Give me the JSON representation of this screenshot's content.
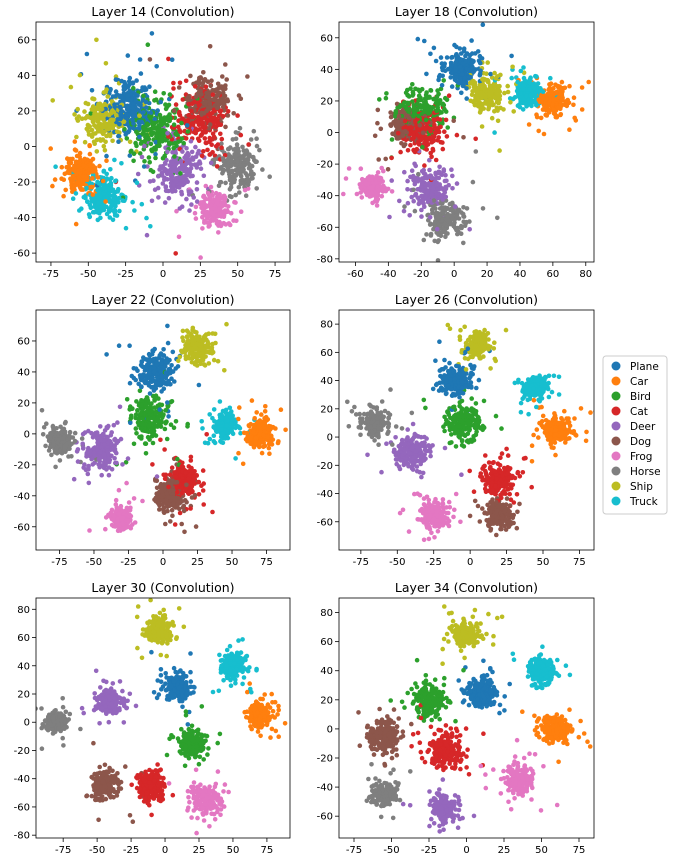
{
  "chart_data": [
    {
      "type": "scatter",
      "title": "Layer 14 (Convolution)",
      "xlim": [
        -85,
        85
      ],
      "ylim": [
        -65,
        70
      ],
      "xticks": [
        -75,
        -50,
        -25,
        0,
        25,
        50,
        75
      ],
      "yticks": [
        -60,
        -40,
        -20,
        0,
        20,
        40,
        60
      ],
      "clusters": [
        {
          "class": "Plane",
          "x": -22,
          "y": 22,
          "spread": 18,
          "n": 260
        },
        {
          "class": "Car",
          "x": -55,
          "y": -15,
          "spread": 12,
          "n": 200
        },
        {
          "class": "Bird",
          "x": -5,
          "y": 10,
          "spread": 20,
          "n": 220
        },
        {
          "class": "Cat",
          "x": 25,
          "y": 15,
          "spread": 20,
          "n": 220
        },
        {
          "class": "Deer",
          "x": 10,
          "y": -15,
          "spread": 18,
          "n": 200
        },
        {
          "class": "Dog",
          "x": 30,
          "y": 25,
          "spread": 15,
          "n": 200
        },
        {
          "class": "Frog",
          "x": 35,
          "y": -35,
          "spread": 12,
          "n": 160
        },
        {
          "class": "Horse",
          "x": 50,
          "y": -10,
          "spread": 16,
          "n": 200
        },
        {
          "class": "Ship",
          "x": -40,
          "y": 15,
          "spread": 16,
          "n": 200
        },
        {
          "class": "Truck",
          "x": -40,
          "y": -28,
          "spread": 14,
          "n": 220
        }
      ]
    },
    {
      "type": "scatter",
      "title": "Layer 18 (Convolution)",
      "xlim": [
        -70,
        85
      ],
      "ylim": [
        -82,
        70
      ],
      "xticks": [
        -60,
        -40,
        -20,
        0,
        20,
        40,
        60,
        80
      ],
      "yticks": [
        -80,
        -60,
        -40,
        -20,
        0,
        20,
        40,
        60
      ],
      "clusters": [
        {
          "class": "Plane",
          "x": 5,
          "y": 40,
          "spread": 12,
          "n": 220
        },
        {
          "class": "Car",
          "x": 60,
          "y": 20,
          "spread": 10,
          "n": 220
        },
        {
          "class": "Bird",
          "x": -20,
          "y": 15,
          "spread": 16,
          "n": 200
        },
        {
          "class": "Cat",
          "x": -20,
          "y": 0,
          "spread": 14,
          "n": 220
        },
        {
          "class": "Deer",
          "x": -15,
          "y": -35,
          "spread": 13,
          "n": 200
        },
        {
          "class": "Dog",
          "x": -30,
          "y": 5,
          "spread": 12,
          "n": 180
        },
        {
          "class": "Frog",
          "x": -50,
          "y": -35,
          "spread": 8,
          "n": 160
        },
        {
          "class": "Horse",
          "x": -5,
          "y": -55,
          "spread": 13,
          "n": 180
        },
        {
          "class": "Ship",
          "x": 20,
          "y": 25,
          "spread": 12,
          "n": 200
        },
        {
          "class": "Truck",
          "x": 45,
          "y": 25,
          "spread": 9,
          "n": 220
        }
      ]
    },
    {
      "type": "scatter",
      "title": "Layer 22 (Convolution)",
      "xlim": [
        -92,
        92
      ],
      "ylim": [
        -75,
        80
      ],
      "xticks": [
        -75,
        -50,
        -25,
        0,
        25,
        50,
        75
      ],
      "yticks": [
        -60,
        -40,
        -20,
        0,
        20,
        40,
        60
      ],
      "clusters": [
        {
          "class": "Plane",
          "x": -5,
          "y": 40,
          "spread": 14,
          "n": 220
        },
        {
          "class": "Car",
          "x": 70,
          "y": 0,
          "spread": 10,
          "n": 220
        },
        {
          "class": "Bird",
          "x": -10,
          "y": 10,
          "spread": 16,
          "n": 200
        },
        {
          "class": "Cat",
          "x": 15,
          "y": -30,
          "spread": 12,
          "n": 220
        },
        {
          "class": "Deer",
          "x": -45,
          "y": -10,
          "spread": 14,
          "n": 200
        },
        {
          "class": "Dog",
          "x": 5,
          "y": -40,
          "spread": 12,
          "n": 200
        },
        {
          "class": "Frog",
          "x": -30,
          "y": -55,
          "spread": 9,
          "n": 180
        },
        {
          "class": "Horse",
          "x": -75,
          "y": -5,
          "spread": 10,
          "n": 180
        },
        {
          "class": "Ship",
          "x": 25,
          "y": 55,
          "spread": 11,
          "n": 200
        },
        {
          "class": "Truck",
          "x": 45,
          "y": 5,
          "spread": 9,
          "n": 220
        }
      ]
    },
    {
      "type": "scatter",
      "title": "Layer 26 (Convolution)",
      "xlim": [
        -90,
        85
      ],
      "ylim": [
        -80,
        90
      ],
      "xticks": [
        -75,
        -50,
        -25,
        0,
        25,
        50,
        75
      ],
      "yticks": [
        -60,
        -40,
        -20,
        0,
        20,
        40,
        60,
        80
      ],
      "clusters": [
        {
          "class": "Plane",
          "x": -10,
          "y": 40,
          "spread": 12,
          "n": 220
        },
        {
          "class": "Car",
          "x": 60,
          "y": 5,
          "spread": 11,
          "n": 220
        },
        {
          "class": "Bird",
          "x": -5,
          "y": 10,
          "spread": 14,
          "n": 200
        },
        {
          "class": "Cat",
          "x": 20,
          "y": -30,
          "spread": 12,
          "n": 220
        },
        {
          "class": "Deer",
          "x": -40,
          "y": -10,
          "spread": 14,
          "n": 200
        },
        {
          "class": "Dog",
          "x": 20,
          "y": -55,
          "spread": 10,
          "n": 180
        },
        {
          "class": "Frog",
          "x": -25,
          "y": -55,
          "spread": 11,
          "n": 180
        },
        {
          "class": "Horse",
          "x": -65,
          "y": 10,
          "spread": 10,
          "n": 180
        },
        {
          "class": "Ship",
          "x": 5,
          "y": 65,
          "spread": 9,
          "n": 200
        },
        {
          "class": "Truck",
          "x": 45,
          "y": 35,
          "spread": 9,
          "n": 220
        }
      ]
    },
    {
      "type": "scatter",
      "title": "Layer 30 (Convolution)",
      "xlim": [
        -95,
        92
      ],
      "ylim": [
        -82,
        88
      ],
      "xticks": [
        -75,
        -50,
        -25,
        0,
        25,
        50,
        75
      ],
      "yticks": [
        -80,
        -60,
        -40,
        -20,
        0,
        20,
        40,
        60,
        80
      ],
      "clusters": [
        {
          "class": "Plane",
          "x": 10,
          "y": 25,
          "spread": 10,
          "n": 220
        },
        {
          "class": "Car",
          "x": 70,
          "y": 5,
          "spread": 9,
          "n": 220
        },
        {
          "class": "Bird",
          "x": 20,
          "y": -15,
          "spread": 11,
          "n": 180
        },
        {
          "class": "Cat",
          "x": -10,
          "y": -45,
          "spread": 11,
          "n": 200
        },
        {
          "class": "Deer",
          "x": -40,
          "y": 15,
          "spread": 10,
          "n": 200
        },
        {
          "class": "Dog",
          "x": -45,
          "y": -45,
          "spread": 10,
          "n": 200
        },
        {
          "class": "Frog",
          "x": 30,
          "y": -55,
          "spread": 11,
          "n": 200
        },
        {
          "class": "Horse",
          "x": -80,
          "y": 0,
          "spread": 8,
          "n": 180
        },
        {
          "class": "Ship",
          "x": -5,
          "y": 65,
          "spread": 10,
          "n": 200
        },
        {
          "class": "Truck",
          "x": 50,
          "y": 40,
          "spread": 10,
          "n": 220
        }
      ]
    },
    {
      "type": "scatter",
      "title": "Layer 34 (Convolution)",
      "xlim": [
        -85,
        85
      ],
      "ylim": [
        -75,
        90
      ],
      "xticks": [
        -75,
        -50,
        -25,
        0,
        25,
        50,
        75
      ],
      "yticks": [
        -60,
        -40,
        -20,
        0,
        20,
        40,
        60,
        80
      ],
      "clusters": [
        {
          "class": "Plane",
          "x": 10,
          "y": 25,
          "spread": 11,
          "n": 220
        },
        {
          "class": "Car",
          "x": 60,
          "y": 0,
          "spread": 10,
          "n": 220
        },
        {
          "class": "Bird",
          "x": -25,
          "y": 20,
          "spread": 12,
          "n": 200
        },
        {
          "class": "Cat",
          "x": -15,
          "y": -15,
          "spread": 13,
          "n": 220
        },
        {
          "class": "Deer",
          "x": -15,
          "y": -55,
          "spread": 9,
          "n": 180
        },
        {
          "class": "Dog",
          "x": -55,
          "y": -5,
          "spread": 12,
          "n": 200
        },
        {
          "class": "Frog",
          "x": 35,
          "y": -35,
          "spread": 11,
          "n": 200
        },
        {
          "class": "Horse",
          "x": -55,
          "y": -45,
          "spread": 9,
          "n": 180
        },
        {
          "class": "Ship",
          "x": 0,
          "y": 65,
          "spread": 10,
          "n": 200
        },
        {
          "class": "Truck",
          "x": 50,
          "y": 40,
          "spread": 10,
          "n": 220
        }
      ]
    }
  ],
  "legend": {
    "placement": "right",
    "entries": [
      {
        "label": "Plane",
        "color": "#1f77b4"
      },
      {
        "label": "Car",
        "color": "#ff7f0e"
      },
      {
        "label": "Bird",
        "color": "#2ca02c"
      },
      {
        "label": "Cat",
        "color": "#d62728"
      },
      {
        "label": "Deer",
        "color": "#9467bd"
      },
      {
        "label": "Dog",
        "color": "#8c564b"
      },
      {
        "label": "Frog",
        "color": "#e377c2"
      },
      {
        "label": "Horse",
        "color": "#7f7f7f"
      },
      {
        "label": "Ship",
        "color": "#bcbd22"
      },
      {
        "label": "Truck",
        "color": "#17becf"
      }
    ]
  }
}
